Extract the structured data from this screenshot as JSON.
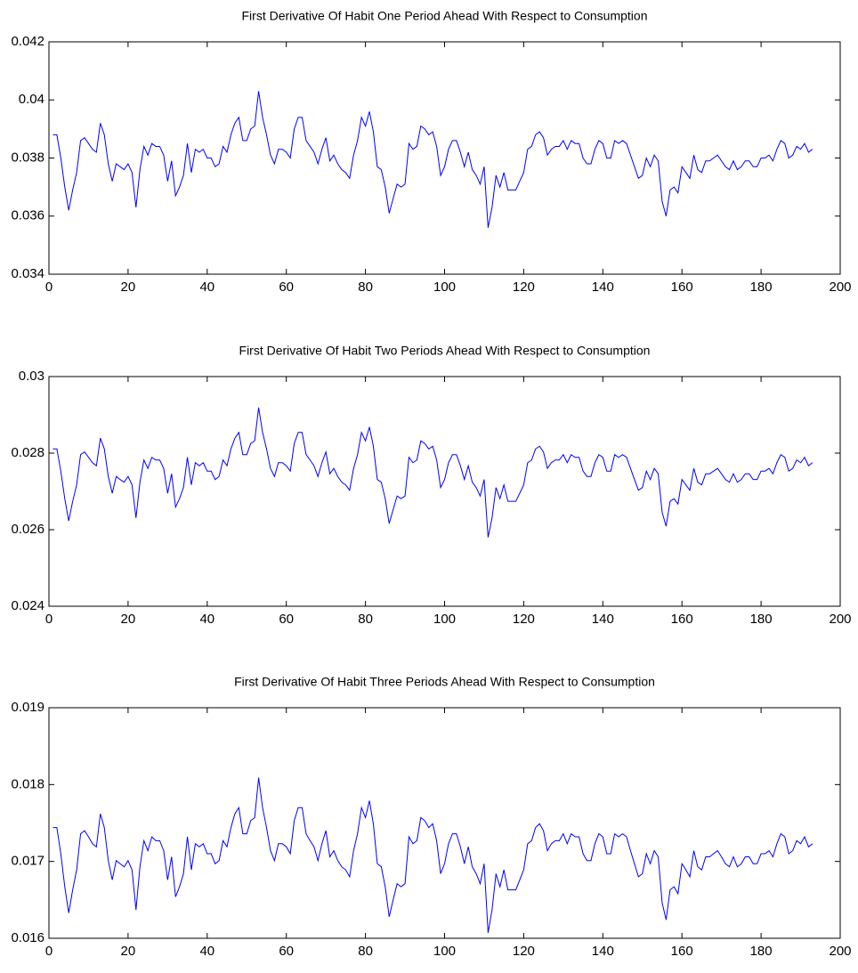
{
  "chart_data": [
    {
      "type": "line",
      "title": "First Derivative Of Habit One Period Ahead With Respect to Consumption",
      "x": [
        1,
        2,
        3,
        4,
        5,
        6,
        7,
        8,
        9,
        10,
        11,
        12,
        13,
        14,
        15,
        16,
        17,
        18,
        19,
        20,
        21,
        22,
        23,
        24,
        25,
        26,
        27,
        28,
        29,
        30,
        31,
        32,
        33,
        34,
        35,
        36,
        37,
        38,
        39,
        40,
        41,
        42,
        43,
        44,
        45,
        46,
        47,
        48,
        49,
        50,
        51,
        52,
        53,
        54,
        55,
        56,
        57,
        58,
        59,
        60,
        61,
        62,
        63,
        64,
        65,
        66,
        67,
        68,
        69,
        70,
        71,
        72,
        73,
        74,
        75,
        76,
        77,
        78,
        79,
        80,
        81,
        82,
        83,
        84,
        85,
        86,
        87,
        88,
        89,
        90,
        91,
        92,
        93,
        94,
        95,
        96,
        97,
        98,
        99,
        100,
        101,
        102,
        103,
        104,
        105,
        106,
        107,
        108,
        109,
        110,
        111,
        112,
        113,
        114,
        115,
        116,
        117,
        118,
        119,
        120,
        121,
        122,
        123,
        124,
        125,
        126,
        127,
        128,
        129,
        130,
        131,
        132,
        133,
        134,
        135,
        136,
        137,
        138,
        139,
        140,
        141,
        142,
        143,
        144,
        145,
        146,
        147,
        148,
        149,
        150,
        151,
        152,
        153,
        154,
        155,
        156,
        157,
        158,
        159,
        160,
        161,
        162,
        163,
        164,
        165,
        166,
        167,
        168,
        169,
        170,
        171,
        172,
        173,
        174,
        175,
        176,
        177,
        178,
        179,
        180,
        181,
        182,
        183,
        184,
        185,
        186,
        187,
        188,
        189,
        190,
        191,
        192,
        193
      ],
      "values": [
        0.0388,
        0.0388,
        0.038,
        0.037,
        0.0362,
        0.0369,
        0.0375,
        0.0386,
        0.0387,
        0.0385,
        0.0383,
        0.0382,
        0.0392,
        0.0388,
        0.0378,
        0.0372,
        0.0378,
        0.0377,
        0.0376,
        0.0378,
        0.0375,
        0.0363,
        0.0376,
        0.0384,
        0.0381,
        0.0385,
        0.0384,
        0.0384,
        0.0381,
        0.0372,
        0.0379,
        0.0367,
        0.037,
        0.0374,
        0.0385,
        0.0375,
        0.0383,
        0.0382,
        0.0383,
        0.038,
        0.038,
        0.0377,
        0.0378,
        0.0384,
        0.0382,
        0.0388,
        0.0392,
        0.0394,
        0.0386,
        0.0386,
        0.039,
        0.0391,
        0.0403,
        0.0394,
        0.0388,
        0.0381,
        0.0378,
        0.0383,
        0.0383,
        0.0382,
        0.038,
        0.039,
        0.0394,
        0.0394,
        0.0386,
        0.0384,
        0.0382,
        0.0378,
        0.0383,
        0.0387,
        0.0379,
        0.0381,
        0.0378,
        0.0376,
        0.0375,
        0.0373,
        0.0381,
        0.0386,
        0.0394,
        0.0391,
        0.0396,
        0.0389,
        0.0377,
        0.0376,
        0.037,
        0.0361,
        0.0366,
        0.0371,
        0.037,
        0.0371,
        0.0385,
        0.0383,
        0.0384,
        0.0391,
        0.039,
        0.0388,
        0.0389,
        0.0384,
        0.0374,
        0.0377,
        0.0383,
        0.0386,
        0.0386,
        0.0382,
        0.0377,
        0.0382,
        0.0376,
        0.0374,
        0.0371,
        0.0377,
        0.0356,
        0.0363,
        0.0374,
        0.037,
        0.0375,
        0.0369,
        0.0369,
        0.0369,
        0.0372,
        0.0375,
        0.0383,
        0.0384,
        0.0388,
        0.0389,
        0.0387,
        0.0381,
        0.0383,
        0.0384,
        0.0384,
        0.0386,
        0.0383,
        0.0386,
        0.0385,
        0.0385,
        0.038,
        0.0378,
        0.0378,
        0.0383,
        0.0386,
        0.0385,
        0.038,
        0.038,
        0.0386,
        0.0385,
        0.0386,
        0.0385,
        0.0381,
        0.0377,
        0.0373,
        0.0374,
        0.038,
        0.0377,
        0.0381,
        0.0379,
        0.0365,
        0.036,
        0.0369,
        0.037,
        0.0368,
        0.0377,
        0.0375,
        0.0373,
        0.0381,
        0.0376,
        0.0375,
        0.0379,
        0.0379,
        0.038,
        0.0381,
        0.0379,
        0.0377,
        0.0376,
        0.0379,
        0.0376,
        0.0377,
        0.0379,
        0.0379,
        0.0377,
        0.0377,
        0.038,
        0.038,
        0.0381,
        0.0379,
        0.0383,
        0.0386,
        0.0385,
        0.038,
        0.0381,
        0.0384,
        0.0383,
        0.0385,
        0.0382,
        0.0383
      ],
      "color": "#0000ff",
      "xlim": [
        0,
        200
      ],
      "xticks": [
        0,
        20,
        40,
        60,
        80,
        100,
        120,
        140,
        160,
        180,
        200
      ],
      "ylim": [
        0.034,
        0.042
      ],
      "yticks": [
        0.034,
        0.036,
        0.038,
        0.04,
        0.042
      ],
      "grid": false
    },
    {
      "type": "line",
      "title": "First Derivative Of Habit Two Periods Ahead With Respect to Consumption",
      "x": [
        1,
        2,
        3,
        4,
        5,
        6,
        7,
        8,
        9,
        10,
        11,
        12,
        13,
        14,
        15,
        16,
        17,
        18,
        19,
        20,
        21,
        22,
        23,
        24,
        25,
        26,
        27,
        28,
        29,
        30,
        31,
        32,
        33,
        34,
        35,
        36,
        37,
        38,
        39,
        40,
        41,
        42,
        43,
        44,
        45,
        46,
        47,
        48,
        49,
        50,
        51,
        52,
        53,
        54,
        55,
        56,
        57,
        58,
        59,
        60,
        61,
        62,
        63,
        64,
        65,
        66,
        67,
        68,
        69,
        70,
        71,
        72,
        73,
        74,
        75,
        76,
        77,
        78,
        79,
        80,
        81,
        82,
        83,
        84,
        85,
        86,
        87,
        88,
        89,
        90,
        91,
        92,
        93,
        94,
        95,
        96,
        97,
        98,
        99,
        100,
        101,
        102,
        103,
        104,
        105,
        106,
        107,
        108,
        109,
        110,
        111,
        112,
        113,
        114,
        115,
        116,
        117,
        118,
        119,
        120,
        121,
        122,
        123,
        124,
        125,
        126,
        127,
        128,
        129,
        130,
        131,
        132,
        133,
        134,
        135,
        136,
        137,
        138,
        139,
        140,
        141,
        142,
        143,
        144,
        145,
        146,
        147,
        148,
        149,
        150,
        151,
        152,
        153,
        154,
        155,
        156,
        157,
        158,
        159,
        160,
        161,
        162,
        163,
        164,
        165,
        166,
        167,
        168,
        169,
        170,
        171,
        172,
        173,
        174,
        175,
        176,
        177,
        178,
        179,
        180,
        181,
        182,
        183,
        184,
        185,
        186,
        187,
        188,
        189,
        190,
        191,
        192,
        193
      ],
      "values": [
        0.02811,
        0.02811,
        0.02753,
        0.02681,
        0.02623,
        0.02674,
        0.02717,
        0.02796,
        0.02803,
        0.02789,
        0.02775,
        0.02767,
        0.02839,
        0.02811,
        0.02739,
        0.02695,
        0.02739,
        0.02731,
        0.02724,
        0.02739,
        0.02717,
        0.02631,
        0.02724,
        0.02782,
        0.0276,
        0.02789,
        0.02782,
        0.02782,
        0.0276,
        0.02695,
        0.02746,
        0.02659,
        0.02681,
        0.0271,
        0.02789,
        0.02717,
        0.02775,
        0.02767,
        0.02775,
        0.02753,
        0.02753,
        0.02731,
        0.02739,
        0.02782,
        0.02767,
        0.02811,
        0.02839,
        0.02854,
        0.02796,
        0.02796,
        0.02825,
        0.02832,
        0.02919,
        0.02854,
        0.02811,
        0.0276,
        0.02739,
        0.02775,
        0.02775,
        0.02767,
        0.02753,
        0.02825,
        0.02854,
        0.02854,
        0.02796,
        0.02782,
        0.02767,
        0.02739,
        0.02775,
        0.02803,
        0.02746,
        0.0276,
        0.02739,
        0.02724,
        0.02717,
        0.02703,
        0.0276,
        0.02796,
        0.02854,
        0.02832,
        0.02868,
        0.02818,
        0.02731,
        0.02724,
        0.02681,
        0.02616,
        0.02652,
        0.02688,
        0.02681,
        0.02688,
        0.02789,
        0.02775,
        0.02782,
        0.02832,
        0.02825,
        0.02811,
        0.02818,
        0.02782,
        0.0271,
        0.02731,
        0.02775,
        0.02796,
        0.02796,
        0.02767,
        0.02731,
        0.02767,
        0.02724,
        0.0271,
        0.02688,
        0.02731,
        0.0258,
        0.02631,
        0.0271,
        0.02681,
        0.02717,
        0.02674,
        0.02674,
        0.02674,
        0.02695,
        0.02717,
        0.02775,
        0.02782,
        0.02811,
        0.02818,
        0.02803,
        0.0276,
        0.02775,
        0.02782,
        0.02782,
        0.02796,
        0.02775,
        0.02796,
        0.02789,
        0.02789,
        0.02753,
        0.02739,
        0.02739,
        0.02775,
        0.02796,
        0.02789,
        0.02753,
        0.02753,
        0.02796,
        0.02789,
        0.02796,
        0.02789,
        0.0276,
        0.02731,
        0.02703,
        0.0271,
        0.02753,
        0.02731,
        0.0276,
        0.02746,
        0.02645,
        0.02609,
        0.02674,
        0.02681,
        0.02667,
        0.02731,
        0.02717,
        0.02703,
        0.0276,
        0.02724,
        0.02717,
        0.02746,
        0.02746,
        0.02753,
        0.0276,
        0.02746,
        0.02731,
        0.02724,
        0.02746,
        0.02724,
        0.02731,
        0.02746,
        0.02746,
        0.02731,
        0.02731,
        0.02753,
        0.02753,
        0.0276,
        0.02746,
        0.02775,
        0.02796,
        0.02789,
        0.02753,
        0.0276,
        0.02782,
        0.02775,
        0.02789,
        0.02767,
        0.02775
      ],
      "color": "#0000ff",
      "xlim": [
        0,
        200
      ],
      "xticks": [
        0,
        20,
        40,
        60,
        80,
        100,
        120,
        140,
        160,
        180,
        200
      ],
      "ylim": [
        0.024,
        0.03
      ],
      "yticks": [
        0.024,
        0.026,
        0.028,
        0.03
      ],
      "grid": false
    },
    {
      "type": "line",
      "title": "First Derivative Of Habit Three Periods Ahead With Respect to Consumption",
      "x": [
        1,
        2,
        3,
        4,
        5,
        6,
        7,
        8,
        9,
        10,
        11,
        12,
        13,
        14,
        15,
        16,
        17,
        18,
        19,
        20,
        21,
        22,
        23,
        24,
        25,
        26,
        27,
        28,
        29,
        30,
        31,
        32,
        33,
        34,
        35,
        36,
        37,
        38,
        39,
        40,
        41,
        42,
        43,
        44,
        45,
        46,
        47,
        48,
        49,
        50,
        51,
        52,
        53,
        54,
        55,
        56,
        57,
        58,
        59,
        60,
        61,
        62,
        63,
        64,
        65,
        66,
        67,
        68,
        69,
        70,
        71,
        72,
        73,
        74,
        75,
        76,
        77,
        78,
        79,
        80,
        81,
        82,
        83,
        84,
        85,
        86,
        87,
        88,
        89,
        90,
        91,
        92,
        93,
        94,
        95,
        96,
        97,
        98,
        99,
        100,
        101,
        102,
        103,
        104,
        105,
        106,
        107,
        108,
        109,
        110,
        111,
        112,
        113,
        114,
        115,
        116,
        117,
        118,
        119,
        120,
        121,
        122,
        123,
        124,
        125,
        126,
        127,
        128,
        129,
        130,
        131,
        132,
        133,
        134,
        135,
        136,
        137,
        138,
        139,
        140,
        141,
        142,
        143,
        144,
        145,
        146,
        147,
        148,
        149,
        150,
        151,
        152,
        153,
        154,
        155,
        156,
        157,
        158,
        159,
        160,
        161,
        162,
        163,
        164,
        165,
        166,
        167,
        168,
        169,
        170,
        171,
        172,
        173,
        174,
        175,
        176,
        177,
        178,
        179,
        180,
        181,
        182,
        183,
        184,
        185,
        186,
        187,
        188,
        189,
        190,
        191,
        192,
        193
      ],
      "values": [
        0.01744,
        0.01744,
        0.0171,
        0.01667,
        0.01633,
        0.01663,
        0.01689,
        0.01736,
        0.0174,
        0.01732,
        0.01723,
        0.01719,
        0.01762,
        0.01744,
        0.01701,
        0.01676,
        0.01701,
        0.01697,
        0.01693,
        0.01701,
        0.01689,
        0.01637,
        0.01693,
        0.01727,
        0.01714,
        0.01732,
        0.01727,
        0.01727,
        0.01714,
        0.01676,
        0.01706,
        0.01654,
        0.01667,
        0.01684,
        0.01732,
        0.01689,
        0.01723,
        0.01719,
        0.01723,
        0.0171,
        0.0171,
        0.01697,
        0.01701,
        0.01727,
        0.01719,
        0.01744,
        0.01762,
        0.0177,
        0.01736,
        0.01736,
        0.01753,
        0.01757,
        0.01809,
        0.0177,
        0.01744,
        0.01714,
        0.01701,
        0.01723,
        0.01723,
        0.01719,
        0.0171,
        0.01753,
        0.0177,
        0.0177,
        0.01736,
        0.01727,
        0.01719,
        0.01701,
        0.01723,
        0.0174,
        0.01706,
        0.01714,
        0.01701,
        0.01693,
        0.01689,
        0.0168,
        0.01714,
        0.01736,
        0.0177,
        0.01757,
        0.01779,
        0.01749,
        0.01697,
        0.01693,
        0.01667,
        0.01628,
        0.0165,
        0.01671,
        0.01667,
        0.01671,
        0.01732,
        0.01723,
        0.01727,
        0.01757,
        0.01753,
        0.01744,
        0.01749,
        0.01727,
        0.01684,
        0.01697,
        0.01723,
        0.01736,
        0.01736,
        0.01719,
        0.01697,
        0.01719,
        0.01693,
        0.01684,
        0.01671,
        0.01697,
        0.01607,
        0.01637,
        0.01684,
        0.01667,
        0.01689,
        0.01663,
        0.01663,
        0.01663,
        0.01676,
        0.01689,
        0.01723,
        0.01727,
        0.01744,
        0.01749,
        0.0174,
        0.01714,
        0.01723,
        0.01727,
        0.01727,
        0.01736,
        0.01723,
        0.01736,
        0.01732,
        0.01732,
        0.0171,
        0.01701,
        0.01701,
        0.01723,
        0.01736,
        0.01732,
        0.0171,
        0.0171,
        0.01736,
        0.01732,
        0.01736,
        0.01732,
        0.01714,
        0.01697,
        0.0168,
        0.01684,
        0.0171,
        0.01697,
        0.01714,
        0.01706,
        0.01646,
        0.01624,
        0.01663,
        0.01667,
        0.01658,
        0.01697,
        0.01689,
        0.0168,
        0.01714,
        0.01693,
        0.01689,
        0.01706,
        0.01706,
        0.0171,
        0.01714,
        0.01706,
        0.01697,
        0.01693,
        0.01706,
        0.01693,
        0.01697,
        0.01706,
        0.01706,
        0.01697,
        0.01697,
        0.0171,
        0.0171,
        0.01714,
        0.01706,
        0.01723,
        0.01736,
        0.01732,
        0.0171,
        0.01714,
        0.01727,
        0.01723,
        0.01732,
        0.01719,
        0.01723
      ],
      "color": "#0000ff",
      "xlim": [
        0,
        200
      ],
      "xticks": [
        0,
        20,
        40,
        60,
        80,
        100,
        120,
        140,
        160,
        180,
        200
      ],
      "ylim": [
        0.016,
        0.019
      ],
      "yticks": [
        0.016,
        0.017,
        0.018,
        0.019
      ],
      "grid": false
    }
  ]
}
